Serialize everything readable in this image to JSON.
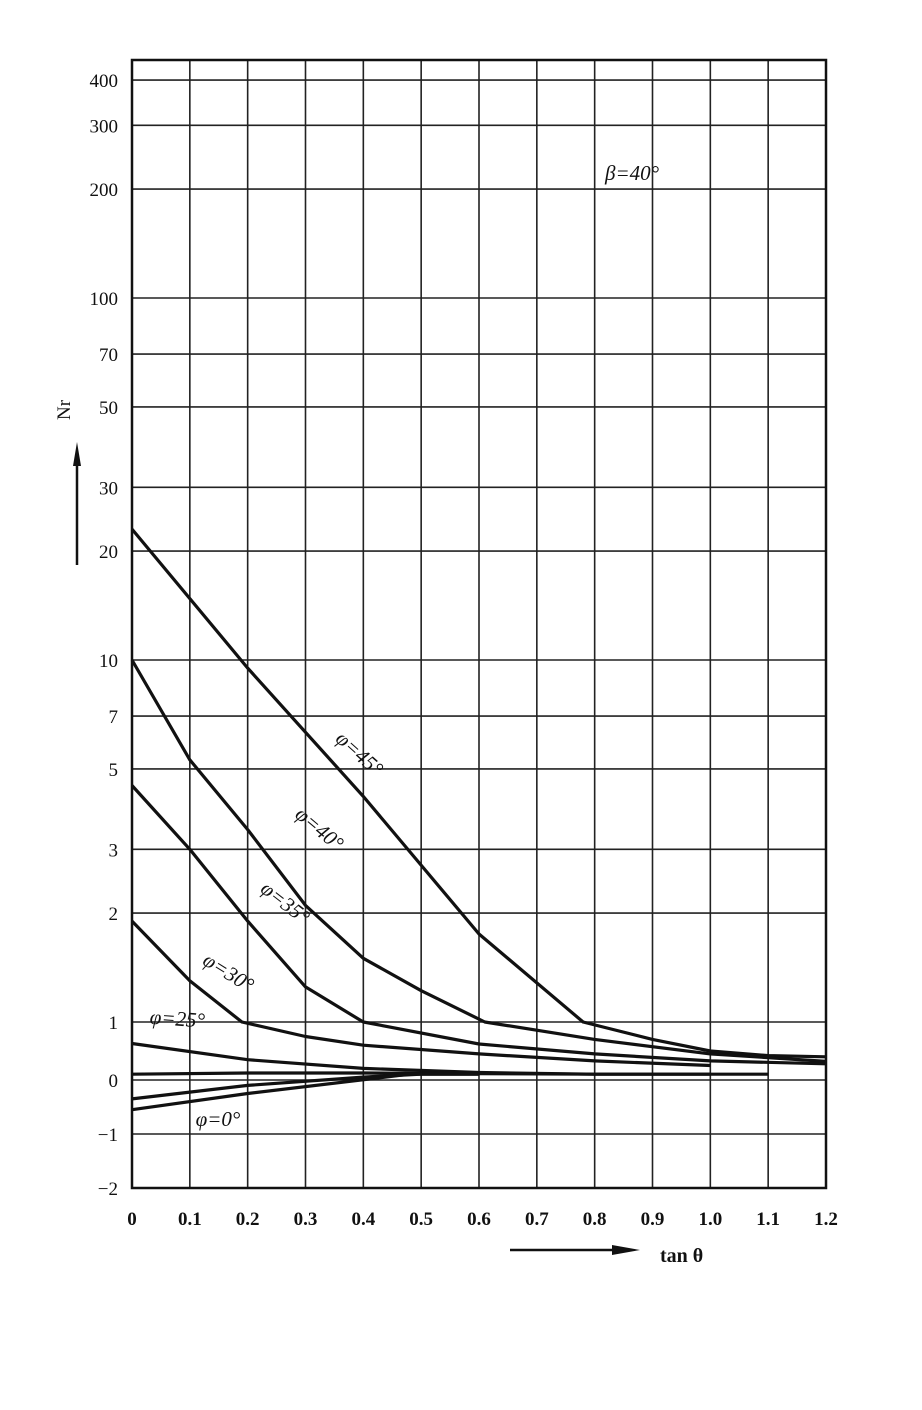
{
  "chart_data": {
    "type": "line",
    "annotation": "β=40°",
    "xlabel": "tan θ",
    "ylabel": "Nr",
    "xlim": [
      0,
      1.2
    ],
    "x_ticks": [
      0,
      0.1,
      0.2,
      0.3,
      0.4,
      0.5,
      0.6,
      0.7,
      0.8,
      0.9,
      1.0,
      1.1,
      1.2
    ],
    "x_tick_labels": [
      "0",
      "0.1",
      "0.2",
      "0.3",
      "0.4",
      "0.5",
      "0.6",
      "0.7",
      "0.8",
      "0.9",
      "1.0",
      "1.1",
      "1.2"
    ],
    "y_scale": "piecewise: linear from -2 to 1, logarithmic from 1 to 400",
    "y_ticks": [
      -2,
      -1,
      0,
      1,
      2,
      3,
      5,
      7,
      10,
      20,
      30,
      50,
      70,
      100,
      200,
      300,
      400
    ],
    "y_tick_labels": [
      "−2",
      "−1",
      "0",
      "1",
      "2",
      "3",
      "5",
      "7",
      "10",
      "20",
      "30",
      "50",
      "70",
      "100",
      "200",
      "300",
      "400"
    ],
    "grid": true,
    "series": [
      {
        "name": "φ=45°",
        "x": [
          0,
          0.2,
          0.4,
          0.6,
          0.78,
          0.9,
          1.0,
          1.1,
          1.2
        ],
        "y": [
          23,
          9.5,
          4.2,
          1.75,
          1.0,
          0.7,
          0.5,
          0.42,
          0.4
        ]
      },
      {
        "name": "φ=40°",
        "x": [
          0,
          0.1,
          0.2,
          0.3,
          0.4,
          0.5,
          0.61,
          0.8,
          1.0,
          1.2
        ],
        "y": [
          10,
          5.3,
          3.4,
          2.1,
          1.5,
          1.22,
          1.0,
          0.7,
          0.45,
          0.32
        ]
      },
      {
        "name": "φ=35°",
        "x": [
          0,
          0.1,
          0.2,
          0.3,
          0.4,
          0.6,
          0.8,
          1.0,
          1.2
        ],
        "y": [
          4.5,
          3.0,
          1.9,
          1.25,
          1.0,
          0.62,
          0.45,
          0.33,
          0.28
        ]
      },
      {
        "name": "φ=30°",
        "x": [
          0,
          0.1,
          0.19,
          0.3,
          0.4,
          0.6,
          0.8,
          1.0
        ],
        "y": [
          1.9,
          1.3,
          1.0,
          0.75,
          0.6,
          0.45,
          0.33,
          0.25
        ]
      },
      {
        "name": "φ=25°",
        "x": [
          0,
          0.2,
          0.4,
          0.6,
          0.8,
          1.0
        ],
        "y": [
          0.63,
          0.35,
          0.2,
          0.13,
          0.1,
          0.1
        ]
      },
      {
        "name": "",
        "x": [
          0,
          0.2,
          0.4,
          0.6,
          0.8,
          1.1
        ],
        "y": [
          0.1,
          0.12,
          0.12,
          0.11,
          0.1,
          0.1
        ]
      },
      {
        "name": "",
        "x": [
          0,
          0.2,
          0.4,
          0.5,
          0.6
        ],
        "y": [
          -0.35,
          -0.1,
          0.05,
          0.1,
          0.1
        ]
      },
      {
        "name": "φ=0°",
        "x": [
          0,
          0.2,
          0.48,
          0.6
        ],
        "y": [
          -0.55,
          -0.25,
          0.1,
          0.1
        ]
      }
    ],
    "series_labels": [
      "φ=45°",
      "φ=40°",
      "φ=35°",
      "φ=30°",
      "φ=25°",
      "φ=0°"
    ]
  }
}
